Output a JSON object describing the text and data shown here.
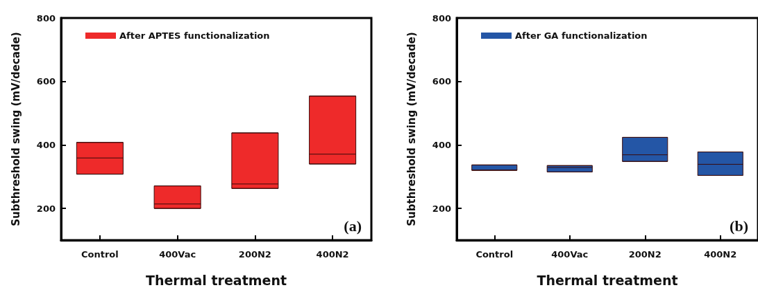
{
  "chart_data": [
    {
      "type": "box",
      "categories": [
        "Control",
        "400Vac",
        "200N2",
        "400N2"
      ],
      "xlabel": "Thermal treatment",
      "ylabel": "Subthreshold swing (mV/decade)",
      "ylim": [
        100,
        800
      ],
      "yticks": [
        200,
        400,
        600,
        800
      ],
      "grid": false,
      "legend": "top left",
      "annotations": [
        "(a)"
      ],
      "series": [
        {
          "name": "After APTES functionalization",
          "color": "#ee2a2a",
          "boxes": [
            {
              "low": 308,
              "q1": 308,
              "median": 359,
              "q3": 408,
              "high": 408
            },
            {
              "low": 200,
              "q1": 200,
              "median": 214,
              "q3": 271,
              "high": 271
            },
            {
              "low": 263,
              "q1": 263,
              "median": 277,
              "q3": 438,
              "high": 438
            },
            {
              "low": 340,
              "q1": 340,
              "median": 371,
              "q3": 554,
              "high": 554
            }
          ]
        }
      ]
    },
    {
      "type": "box",
      "categories": [
        "Control",
        "400Vac",
        "200N2",
        "400N2"
      ],
      "xlabel": "Thermal treatment",
      "ylabel": "Subthreshold swing (mV/decade)",
      "ylim": [
        100,
        800
      ],
      "yticks": [
        200,
        400,
        600,
        800
      ],
      "grid": false,
      "legend": "top left",
      "annotations": [
        "(b)"
      ],
      "series": [
        {
          "name": "After GA functionalization",
          "color": "#2456a6",
          "boxes": [
            {
              "low": 320,
              "q1": 320,
              "median": 321,
              "q3": 337,
              "high": 337
            },
            {
              "low": 315,
              "q1": 315,
              "median": 329,
              "q3": 335,
              "high": 335
            },
            {
              "low": 348,
              "q1": 348,
              "median": 369,
              "q3": 424,
              "high": 424
            },
            {
              "low": 304,
              "q1": 304,
              "median": 339,
              "q3": 378,
              "high": 378
            }
          ]
        }
      ]
    }
  ]
}
